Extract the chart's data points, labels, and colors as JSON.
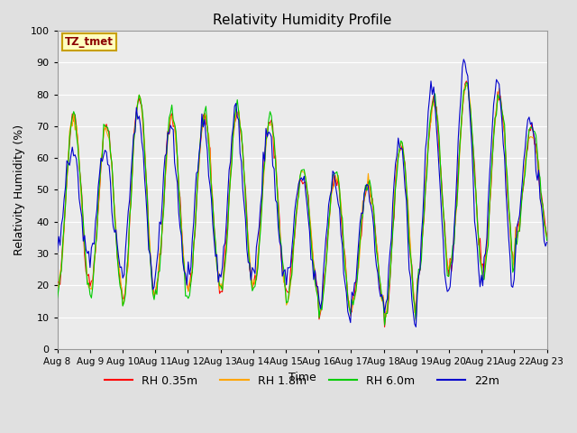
{
  "title": "Relativity Humidity Profile",
  "xlabel": "Time",
  "ylabel": "Relativity Humidity (%)",
  "ylim": [
    0,
    100
  ],
  "yticks": [
    0,
    10,
    20,
    30,
    40,
    50,
    60,
    70,
    80,
    90,
    100
  ],
  "xtick_labels": [
    "Aug 8",
    "Aug 9",
    "Aug 10",
    "Aug 11",
    "Aug 12",
    "Aug 13",
    "Aug 14",
    "Aug 15",
    "Aug 16",
    "Aug 17",
    "Aug 18",
    "Aug 19",
    "Aug 20",
    "Aug 21",
    "Aug 22",
    "Aug 23"
  ],
  "annotation_text": "TZ_tmet",
  "annotation_color": "#8B0000",
  "annotation_bg": "#FFFFC0",
  "annotation_border": "#C8A000",
  "colors": {
    "RH 0.35m": "#FF0000",
    "RH 1.8m": "#FFA500",
    "RH 6.0m": "#00CC00",
    "22m": "#0000CC"
  },
  "background_color": "#E0E0E0",
  "plot_bg": "#EBEBEB",
  "grid_color": "#FFFFFF",
  "n_days": 15,
  "pts_per_day": 24
}
